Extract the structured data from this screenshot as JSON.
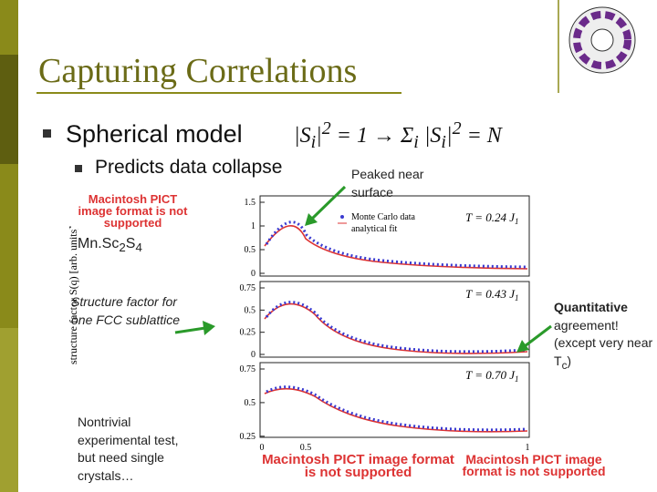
{
  "slide": {
    "title": "Capturing Correlations",
    "bullet": "Spherical model",
    "formula": [
      "|S",
      "i",
      "|",
      "2",
      " = 1 → Σ",
      "i",
      " |S",
      "i",
      "|",
      "2",
      " = N"
    ],
    "sub_bullet": "Predicts data collapse",
    "peaked_note": "Peaked near surface",
    "material": [
      "Mn.Sc",
      "2",
      "S",
      "4"
    ],
    "structure_note": "Structure factor for one FCC sublattice",
    "nontrivial_note": "Nontrivial experimental test, but need single crystals…",
    "quantitative_note": {
      "heading": "Quantitative",
      "body": [
        "agreement! (except very near T",
        "c",
        ")"
      ]
    },
    "placeholders": [
      "Macintosh PICT image format is not supported",
      "Macintosh PICT image format is not supported",
      "Macintosh PICT image format is not supported"
    ],
    "figure": {
      "y_label": "structure factor S(q) [arb. units]",
      "legend": [
        "Monte Carlo data",
        "analytical fit"
      ],
      "panels": [
        {
          "temperature": [
            "T = 0.24 J",
            "1"
          ],
          "ticks": [
            "1.5",
            "1",
            "0.5",
            "0"
          ]
        },
        {
          "temperature": [
            "T = 0.43 J",
            "1"
          ],
          "ticks": [
            "0.75",
            "0.5",
            "0.25",
            "0"
          ]
        },
        {
          "temperature": [
            "T = 0.70 J",
            "1"
          ],
          "ticks": [
            "0.75",
            "0.5",
            "0.25"
          ]
        }
      ],
      "x_ticks": [
        "0",
        "0.5",
        "1"
      ]
    }
  }
}
